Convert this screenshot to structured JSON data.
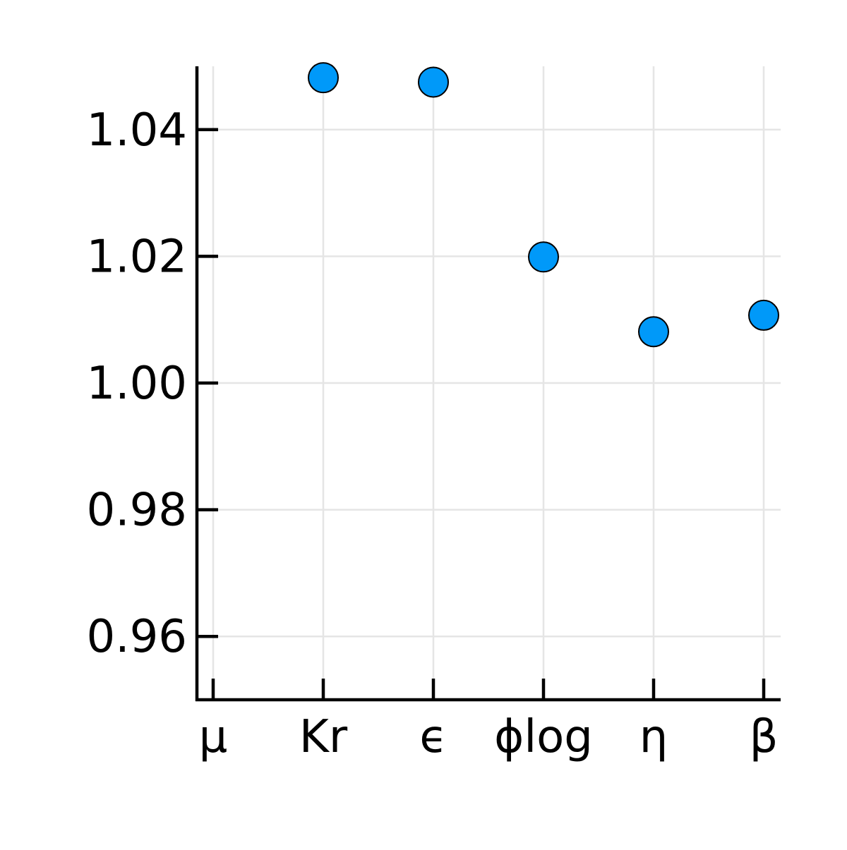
{
  "chart_data": {
    "type": "scatter",
    "categories": [
      "μ",
      "Kr",
      "ϵ",
      "ϕlog",
      "η",
      "β"
    ],
    "series": [
      {
        "values": [
          null,
          1.0482,
          1.0475,
          1.0199,
          1.0081,
          1.0107
        ]
      }
    ],
    "yticks": [
      "0.96",
      "0.98",
      "1.00",
      "1.02",
      "1.04"
    ],
    "ylim": [
      0.95,
      1.05
    ],
    "grid": true,
    "legend": "none",
    "colors": {
      "marker": "#0099f9",
      "marker_stroke": "#000000",
      "grid": "#e5e5e5",
      "axis": "#000000"
    }
  }
}
